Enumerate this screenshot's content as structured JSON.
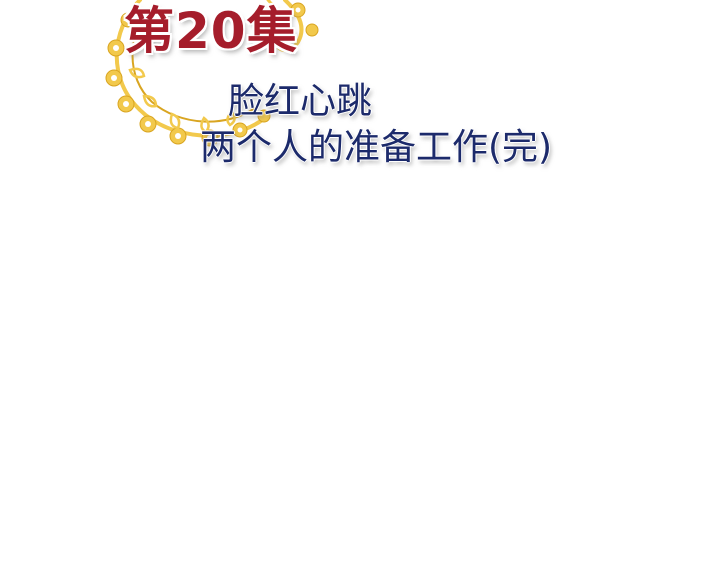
{
  "episode_label": "第20集",
  "subtitle_line1": "脸红心跳",
  "subtitle_line2": "两个人的准备工作(完)",
  "colors": {
    "episode": "#a51d2b",
    "subtitle": "#1c2a6b",
    "ornament": "#f2c94c",
    "ornament_dark": "#d9a521"
  },
  "icons": [
    "golden-lace-ornament"
  ]
}
